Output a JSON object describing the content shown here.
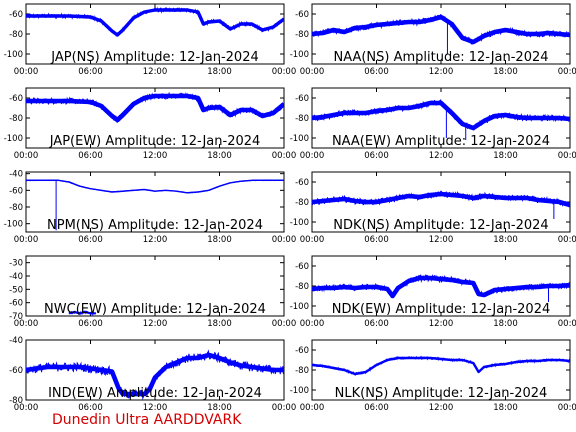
{
  "footer_text": "Dunedin Ultra AARDDVARK",
  "colors": {
    "trace": "#0000ff",
    "axes": "#000000",
    "footer": "#d40000"
  },
  "chart_data": [
    {
      "type": "line",
      "title": "JAP(NS) Amplitude: 12-Jan-2024",
      "x_ticks": [
        "00:00",
        "06:00",
        "12:00",
        "18:00",
        "00:00"
      ],
      "y_ticks": [
        -100,
        -80,
        -60
      ],
      "ylim": [
        -110,
        -50
      ],
      "xlim": [
        0,
        24
      ],
      "series": [
        {
          "band": 2,
          "x": [
            0,
            2,
            4,
            6,
            7,
            8,
            8.5,
            9,
            10,
            11,
            12,
            13,
            14,
            15,
            16,
            16.5,
            17,
            18,
            19,
            20,
            21,
            22,
            23,
            24
          ],
          "y": [
            -62,
            -62,
            -62,
            -63,
            -67,
            -77,
            -81,
            -76,
            -64,
            -58,
            -56,
            -56,
            -56,
            -56,
            -58,
            -70,
            -68,
            -67,
            -75,
            -70,
            -70,
            -76,
            -73,
            -65
          ]
        }
      ]
    },
    {
      "type": "line",
      "title": "NAA(NS) Amplitude: 12-Jan-2024",
      "x_ticks": [
        "00:00",
        "06:00",
        "12:00",
        "18:00",
        "00:00"
      ],
      "y_ticks": [
        -100,
        -80,
        -60
      ],
      "ylim": [
        -110,
        -50
      ],
      "xlim": [
        0,
        24
      ],
      "series": [
        {
          "band": 3,
          "x": [
            0,
            1,
            2,
            3,
            4,
            5,
            6,
            7,
            8,
            9,
            10,
            11,
            12,
            13,
            13.5,
            14,
            15,
            16,
            17,
            18,
            19,
            20,
            21,
            22,
            23,
            24
          ],
          "y": [
            -80,
            -79,
            -76,
            -78,
            -74,
            -73,
            -71,
            -70,
            -69,
            -68,
            -68,
            -66,
            -63,
            -70,
            -77,
            -84,
            -88,
            -82,
            -78,
            -76,
            -78,
            -80,
            -80,
            -79,
            -80,
            -81
          ]
        }
      ],
      "spikes": [
        {
          "x": 12.6,
          "y": -100
        }
      ]
    },
    {
      "type": "line",
      "title": "JAP(EW) Amplitude: 12-Jan-2024",
      "x_ticks": [
        "00:00",
        "06:00",
        "12:00",
        "18:00",
        "00:00"
      ],
      "y_ticks": [
        -100,
        -80,
        -60
      ],
      "ylim": [
        -110,
        -50
      ],
      "xlim": [
        0,
        24
      ],
      "series": [
        {
          "band": 3,
          "x": [
            0,
            2,
            4,
            6,
            7,
            8,
            8.5,
            9,
            10,
            11,
            12,
            13,
            14,
            15,
            16,
            16.5,
            17,
            18,
            19,
            20,
            21,
            22,
            23,
            24
          ],
          "y": [
            -63,
            -63,
            -63,
            -64,
            -68,
            -78,
            -82,
            -77,
            -66,
            -60,
            -58,
            -58,
            -58,
            -58,
            -60,
            -72,
            -70,
            -69,
            -77,
            -72,
            -72,
            -78,
            -75,
            -66
          ]
        }
      ]
    },
    {
      "type": "line",
      "title": "NAA(EW) Amplitude: 12-Jan-2024",
      "x_ticks": [
        "00:00",
        "06:00",
        "12:00",
        "18:00",
        "00:00"
      ],
      "y_ticks": [
        -100,
        -80,
        -60
      ],
      "ylim": [
        -110,
        -50
      ],
      "xlim": [
        0,
        24
      ],
      "series": [
        {
          "band": 3,
          "x": [
            0,
            1,
            2,
            3,
            4,
            5,
            6,
            7,
            8,
            9,
            10,
            11,
            12,
            13,
            14,
            15,
            16,
            17,
            18,
            19,
            20,
            21,
            22,
            23,
            24
          ],
          "y": [
            -80,
            -79,
            -77,
            -75,
            -75,
            -75,
            -73,
            -72,
            -70,
            -70,
            -68,
            -65,
            -65,
            -75,
            -86,
            -90,
            -83,
            -78,
            -77,
            -79,
            -80,
            -80,
            -80,
            -80,
            -81
          ]
        }
      ],
      "spikes": [
        {
          "x": 12.5,
          "y": -100
        },
        {
          "x": 14.3,
          "y": -102
        }
      ]
    },
    {
      "type": "line",
      "title": "NPM(NS) Amplitude: 12-Jan-2024",
      "x_ticks": [
        "00:00",
        "06:00",
        "12:00",
        "18:00",
        "00:00"
      ],
      "y_ticks": [
        -100,
        -80,
        -60,
        -40
      ],
      "ylim": [
        -110,
        -38
      ],
      "xlim": [
        0,
        24
      ],
      "series": [
        {
          "band": 0.4,
          "x": [
            0,
            2,
            3,
            4,
            5,
            6,
            7,
            8,
            9,
            10,
            11,
            12,
            13,
            14,
            15,
            16,
            17,
            18,
            19,
            20,
            21,
            22,
            23,
            24
          ],
          "y": [
            -48,
            -48,
            -48,
            -50,
            -55,
            -58,
            -60,
            -62,
            -61,
            -60,
            -59,
            -61,
            -60,
            -61,
            -63,
            -62,
            -60,
            -55,
            -51,
            -49,
            -48,
            -48,
            -48,
            -48
          ]
        }
      ],
      "spikes": [
        {
          "x": 2.8,
          "y": -108
        }
      ]
    },
    {
      "type": "line",
      "title": "NDK(NS) Amplitude: 12-Jan-2024",
      "x_ticks": [
        "00:00",
        "06:00",
        "12:00",
        "18:00",
        "00:00"
      ],
      "y_ticks": [
        -100,
        -80,
        -60
      ],
      "ylim": [
        -110,
        -50
      ],
      "xlim": [
        0,
        24
      ],
      "series": [
        {
          "band": 3,
          "x": [
            0,
            1,
            2,
            3,
            4,
            5,
            6,
            7,
            8,
            9,
            10,
            11,
            12,
            13,
            14,
            15,
            16,
            17,
            18,
            19,
            20,
            21,
            22,
            23,
            24
          ],
          "y": [
            -80,
            -79,
            -78,
            -77,
            -79,
            -80,
            -80,
            -78,
            -76,
            -74,
            -75,
            -73,
            -72,
            -73,
            -74,
            -76,
            -74,
            -75,
            -76,
            -76,
            -76,
            -78,
            -79,
            -80,
            -83
          ]
        }
      ],
      "spikes": [
        {
          "x": 22.5,
          "y": -97
        }
      ]
    },
    {
      "type": "line",
      "title": "NWC(EW) Amplitude: 12-Jan-2024",
      "x_ticks": [
        "00:00",
        "06:00",
        "12:00",
        "18:00",
        "00:00"
      ],
      "y_ticks": [
        -70,
        -60,
        -50,
        -40,
        -30
      ],
      "ylim": [
        -70,
        -25
      ],
      "xlim": [
        0,
        24
      ],
      "series": [
        {
          "band": 1,
          "x": [
            4.0,
            4.5,
            5.0,
            5.5,
            6.0,
            6.5
          ],
          "y": [
            -68,
            -67,
            -68,
            -67,
            -68,
            -68
          ]
        }
      ]
    },
    {
      "type": "line",
      "title": "NDK(EW) Amplitude: 12-Jan-2024",
      "x_ticks": [
        "00:00",
        "06:00",
        "12:00",
        "18:00",
        "00:00"
      ],
      "y_ticks": [
        -100,
        -80,
        -60
      ],
      "ylim": [
        -110,
        -50
      ],
      "xlim": [
        0,
        24
      ],
      "series": [
        {
          "band": 3,
          "x": [
            0,
            1,
            2,
            3,
            4,
            5,
            6,
            7,
            7.5,
            8,
            9,
            10,
            11,
            12,
            13,
            14,
            15,
            15.5,
            16,
            17,
            18,
            19,
            20,
            21,
            22,
            23,
            24
          ],
          "y": [
            -83,
            -82,
            -82,
            -81,
            -82,
            -81,
            -81,
            -83,
            -90,
            -82,
            -75,
            -72,
            -72,
            -73,
            -74,
            -76,
            -77,
            -88,
            -89,
            -84,
            -83,
            -82,
            -81,
            -81,
            -80,
            -80,
            -79
          ]
        }
      ],
      "spikes": [
        {
          "x": 22.0,
          "y": -96
        }
      ]
    },
    {
      "type": "line",
      "title": "IND(EW) Amplitude: 12-Jan-2024",
      "x_ticks": [
        "00:00",
        "06:00",
        "12:00",
        "18:00",
        "00:00"
      ],
      "y_ticks": [
        -80,
        -60,
        -40
      ],
      "ylim": [
        -80,
        -40
      ],
      "xlim": [
        0,
        24
      ],
      "series": [
        {
          "band": 3,
          "x": [
            0,
            1,
            2,
            3,
            4,
            5,
            6,
            7,
            8,
            8.6,
            9,
            10,
            11,
            11.5,
            12,
            13,
            14,
            15,
            16,
            17,
            18,
            19,
            20,
            21,
            22,
            23,
            24
          ],
          "y": [
            -60,
            -59,
            -58,
            -58,
            -58,
            -58,
            -59,
            -60,
            -61,
            -72,
            -76,
            -76,
            -76,
            -73,
            -65,
            -58,
            -55,
            -52,
            -52,
            -50,
            -52,
            -55,
            -57,
            -58,
            -59,
            -60,
            -60
          ]
        }
      ]
    },
    {
      "type": "line",
      "title": "NLK(NS) Amplitude: 12-Jan-2024",
      "x_ticks": [
        "00:00",
        "06:00",
        "12:00",
        "18:00",
        "00:00"
      ],
      "y_ticks": [
        -100,
        -80,
        -60
      ],
      "ylim": [
        -110,
        -50
      ],
      "xlim": [
        0,
        24
      ],
      "series": [
        {
          "band": 1.2,
          "x": [
            0,
            1,
            2,
            3,
            4,
            5,
            6,
            7,
            8,
            9,
            10,
            11,
            12,
            13,
            14,
            15,
            15.5,
            16,
            17,
            18,
            19,
            20,
            21,
            22,
            23,
            24
          ],
          "y": [
            -75,
            -76,
            -78,
            -80,
            -84,
            -82,
            -75,
            -70,
            -68,
            -68,
            -68,
            -68,
            -69,
            -70,
            -70,
            -73,
            -82,
            -77,
            -75,
            -74,
            -72,
            -71,
            -71,
            -70,
            -70,
            -71
          ]
        }
      ]
    }
  ]
}
